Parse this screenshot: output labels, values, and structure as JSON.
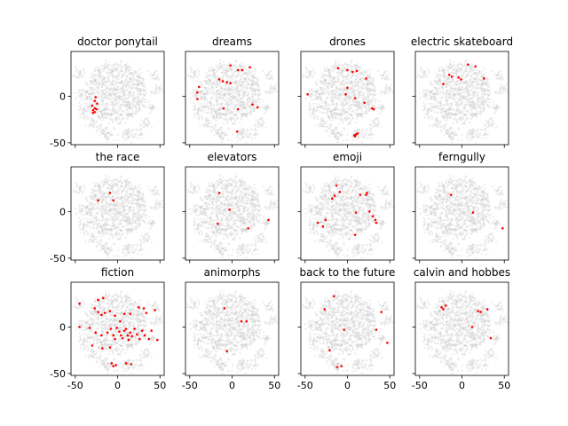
{
  "chart_data": {
    "type": "scatter",
    "grid": {
      "rows": 3,
      "cols": 4,
      "sharex": true,
      "sharey": true
    },
    "xlim": [
      -55,
      55
    ],
    "ylim": [
      -52,
      48
    ],
    "xticks": [
      -50,
      0,
      50
    ],
    "yticks": [
      -50,
      0
    ],
    "background": {
      "color": "#c8c8c8",
      "description": "shared grey t-SNE point cloud drawn in every panel"
    },
    "highlight_color": "#ff0000",
    "panels": [
      {
        "title": "doctor ponytail",
        "points": [
          [
            -26,
            -1
          ],
          [
            -27,
            -5
          ],
          [
            -24,
            -8
          ],
          [
            -30,
            -10
          ],
          [
            -27,
            -13
          ],
          [
            -29,
            -15
          ],
          [
            -25,
            -14
          ],
          [
            -27,
            -17
          ],
          [
            -29,
            -18
          ]
        ]
      },
      {
        "title": "dreams",
        "points": [
          [
            -2,
            33
          ],
          [
            7,
            28
          ],
          [
            12,
            28
          ],
          [
            21,
            31
          ],
          [
            -39,
            10
          ],
          [
            -41,
            4
          ],
          [
            -41,
            -3
          ],
          [
            -15,
            18
          ],
          [
            -11,
            16
          ],
          [
            -6,
            15
          ],
          [
            -2,
            14
          ],
          [
            -10,
            -13
          ],
          [
            7,
            -14
          ],
          [
            24,
            -9
          ],
          [
            30,
            -12
          ],
          [
            6,
            -38
          ]
        ]
      },
      {
        "title": "drones",
        "points": [
          [
            -11,
            30
          ],
          [
            0,
            28
          ],
          [
            6,
            26
          ],
          [
            11,
            27
          ],
          [
            22,
            19
          ],
          [
            0,
            9
          ],
          [
            -2,
            2
          ],
          [
            -47,
            2
          ],
          [
            9,
            -2
          ],
          [
            20,
            -7
          ],
          [
            29,
            -13
          ],
          [
            31,
            -14
          ],
          [
            12,
            -40
          ],
          [
            10,
            -41
          ],
          [
            8,
            -42
          ],
          [
            9,
            -43
          ]
        ]
      },
      {
        "title": "electric skateboard",
        "points": [
          [
            7,
            34
          ],
          [
            16,
            32
          ],
          [
            -15,
            23
          ],
          [
            -12,
            21
          ],
          [
            -4,
            20
          ],
          [
            -1,
            18
          ],
          [
            -22,
            13
          ],
          [
            26,
            19
          ]
        ]
      },
      {
        "title": "the race",
        "points": [
          [
            -9,
            20
          ],
          [
            -23,
            12
          ],
          [
            -5,
            12
          ]
        ]
      },
      {
        "title": "elevators",
        "points": [
          [
            -15,
            20
          ],
          [
            -3,
            2
          ],
          [
            -17,
            -13
          ],
          [
            43,
            -9
          ],
          [
            19,
            -18
          ]
        ]
      },
      {
        "title": "emoji",
        "points": [
          [
            -13,
            28
          ],
          [
            -9,
            21
          ],
          [
            -15,
            17
          ],
          [
            -18,
            14
          ],
          [
            15,
            18
          ],
          [
            22,
            18
          ],
          [
            23,
            20
          ],
          [
            26,
            0
          ],
          [
            30,
            -5
          ],
          [
            33,
            -9
          ],
          [
            -26,
            -9
          ],
          [
            -29,
            -16
          ],
          [
            -35,
            -12
          ],
          [
            10,
            -1
          ],
          [
            9,
            -25
          ],
          [
            34,
            -12
          ]
        ]
      },
      {
        "title": "ferngully",
        "points": [
          [
            -13,
            18
          ],
          [
            13,
            -1
          ],
          [
            48,
            -18
          ]
        ]
      },
      {
        "title": "fiction",
        "points": [
          [
            -23,
            29
          ],
          [
            -17,
            31
          ],
          [
            -27,
            20
          ],
          [
            -23,
            16
          ],
          [
            -19,
            13
          ],
          [
            -15,
            15
          ],
          [
            -9,
            17
          ],
          [
            -3,
            12
          ],
          [
            3,
            6
          ],
          [
            8,
            14
          ],
          [
            15,
            14
          ],
          [
            25,
            21
          ],
          [
            31,
            20
          ],
          [
            34,
            15
          ],
          [
            44,
            18
          ],
          [
            -33,
            -1
          ],
          [
            -26,
            -6
          ],
          [
            -19,
            -9
          ],
          [
            -12,
            -6
          ],
          [
            -8,
            -2
          ],
          [
            -5,
            -9
          ],
          [
            -3,
            -13
          ],
          [
            -1,
            -1
          ],
          [
            2,
            -5
          ],
          [
            4,
            -9
          ],
          [
            6,
            -12
          ],
          [
            8,
            -4
          ],
          [
            10,
            -2
          ],
          [
            12,
            -9
          ],
          [
            13,
            -14
          ],
          [
            15,
            -6
          ],
          [
            17,
            -10
          ],
          [
            20,
            -2
          ],
          [
            23,
            -8
          ],
          [
            26,
            -13
          ],
          [
            29,
            -4
          ],
          [
            32,
            -9
          ],
          [
            37,
            -13
          ],
          [
            40,
            -4
          ],
          [
            -45,
            25
          ],
          [
            -45,
            0
          ],
          [
            -30,
            -20
          ],
          [
            -18,
            -23
          ],
          [
            -9,
            -22
          ],
          [
            -7,
            -39
          ],
          [
            -5,
            -42
          ],
          [
            -2,
            -41
          ],
          [
            10,
            -39
          ],
          [
            16,
            -40
          ],
          [
            47,
            -14
          ]
        ]
      },
      {
        "title": "animorphs",
        "points": [
          [
            -9,
            20
          ],
          [
            11,
            6
          ],
          [
            17,
            6
          ],
          [
            -6,
            -26
          ]
        ]
      },
      {
        "title": "back to the future",
        "points": [
          [
            -16,
            33
          ],
          [
            -27,
            19
          ],
          [
            40,
            16
          ],
          [
            34,
            -3
          ],
          [
            47,
            -17
          ],
          [
            -4,
            -3
          ],
          [
            -21,
            -25
          ],
          [
            -12,
            -43
          ],
          [
            -7,
            -42
          ]
        ]
      },
      {
        "title": "calvin and hobbes",
        "points": [
          [
            -24,
            21
          ],
          [
            -22,
            19
          ],
          [
            -19,
            23
          ],
          [
            19,
            17
          ],
          [
            22,
            16
          ],
          [
            30,
            19
          ],
          [
            12,
            0
          ],
          [
            34,
            -12
          ]
        ]
      }
    ]
  }
}
